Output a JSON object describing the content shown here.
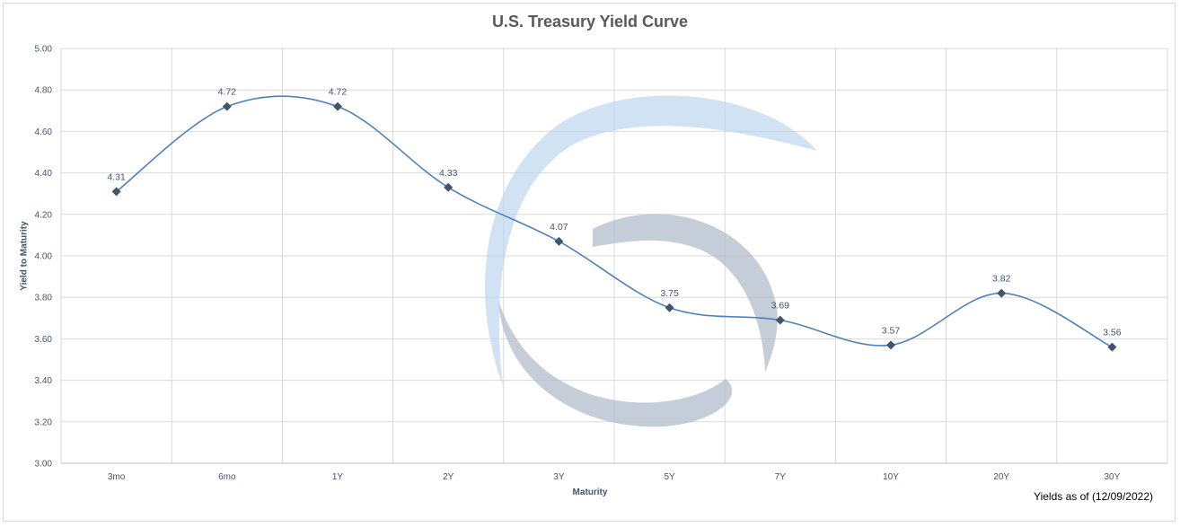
{
  "chart_data": {
    "type": "line",
    "title": "U.S. Treasury Yield Curve",
    "xlabel": "Maturity",
    "ylabel": "Yield to Maturity",
    "categories": [
      "3mo",
      "6mo",
      "1Y",
      "2Y",
      "3Y",
      "5Y",
      "7Y",
      "10Y",
      "20Y",
      "30Y"
    ],
    "series": [
      {
        "values": [
          4.31,
          4.72,
          4.72,
          4.33,
          4.07,
          3.75,
          3.69,
          3.57,
          3.82,
          3.56
        ]
      }
    ],
    "ylim": [
      3.0,
      5.0
    ],
    "yticks": [
      "3.00",
      "3.20",
      "3.40",
      "3.60",
      "3.80",
      "4.00",
      "4.20",
      "4.40",
      "4.60",
      "4.80",
      "5.00"
    ],
    "data_labels": [
      "4.31",
      "4.72",
      "4.72",
      "4.33",
      "4.07",
      "3.75",
      "3.69",
      "3.57",
      "3.82",
      "3.56"
    ],
    "grid": true,
    "line_color": "#4f81bd",
    "marker_color": "#44546a",
    "footnote": "Yields as of (12/09/2022)"
  },
  "colors": {
    "title": "#595959",
    "axis_text": "#44546a",
    "grid": "#d9d9d9",
    "watermark_light": "#bdd7ee",
    "watermark_gray": "#adb9ca"
  }
}
